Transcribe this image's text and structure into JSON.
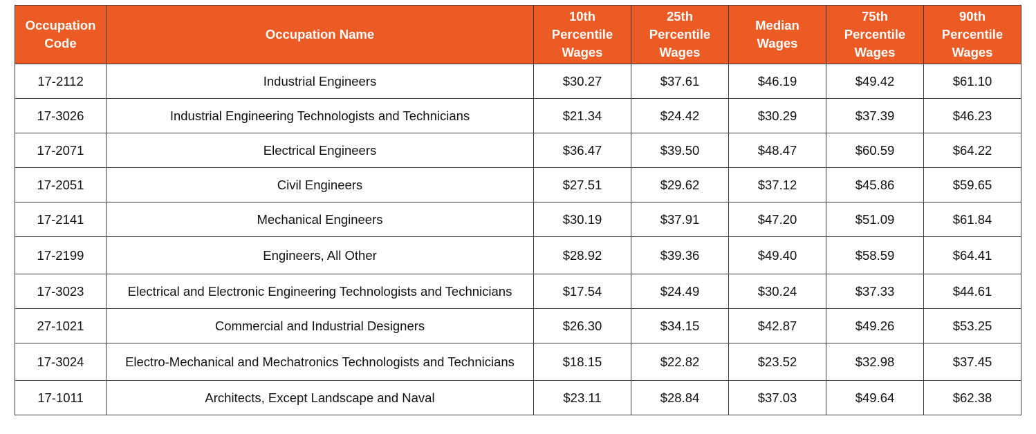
{
  "table": {
    "headers": [
      "Occupation Code",
      "Occupation Name",
      "10th Percentile Wages",
      "25th Percentile Wages",
      "Median Wages",
      "75th Percentile Wages",
      "90th Percentile Wages"
    ],
    "header_lines": [
      [
        "Occupation",
        "Code"
      ],
      [
        "Occupation Name"
      ],
      [
        "10th",
        "Percentile",
        "Wages"
      ],
      [
        "25th",
        "Percentile",
        "Wages"
      ],
      [
        "Median",
        "Wages"
      ],
      [
        "75th",
        "Percentile",
        "Wages"
      ],
      [
        "90th",
        "Percentile",
        "Wages"
      ]
    ],
    "rows": [
      [
        "17-2112",
        "Industrial Engineers",
        "$30.27",
        "$37.61",
        "$46.19",
        "$49.42",
        "$61.10"
      ],
      [
        "17-3026",
        "Industrial Engineering Technologists and Technicians",
        "$21.34",
        "$24.42",
        "$30.29",
        "$37.39",
        "$46.23"
      ],
      [
        "17-2071",
        "Electrical Engineers",
        "$36.47",
        "$39.50",
        "$48.47",
        "$60.59",
        "$64.22"
      ],
      [
        "17-2051",
        "Civil Engineers",
        "$27.51",
        "$29.62",
        "$37.12",
        "$45.86",
        "$59.65"
      ],
      [
        "17-2141",
        "Mechanical Engineers",
        "$30.19",
        "$37.91",
        "$47.20",
        "$51.09",
        "$61.84"
      ],
      [
        "17-2199",
        "Engineers, All Other",
        "$28.92",
        "$39.36",
        "$49.40",
        "$58.59",
        "$64.41"
      ],
      [
        "17-3023",
        "Electrical and Electronic Engineering Technologists and Technicians",
        "$17.54",
        "$24.49",
        "$30.24",
        "$37.33",
        "$44.61"
      ],
      [
        "27-1021",
        "Commercial and Industrial Designers",
        "$26.30",
        "$34.15",
        "$42.87",
        "$49.26",
        "$53.25"
      ],
      [
        "17-3024",
        "Electro-Mechanical and Mechatronics Technologists and Technicians",
        "$18.15",
        "$22.82",
        "$23.52",
        "$32.98",
        "$37.45"
      ],
      [
        "17-1011",
        "Architects, Except Landscape and Naval",
        "$23.11",
        "$28.84",
        "$37.03",
        "$49.64",
        "$62.38"
      ]
    ]
  },
  "colors": {
    "header_bg": "#ec5b24",
    "header_text": "#ffffff",
    "border": "#3a3a3a",
    "body_text": "#111111"
  }
}
